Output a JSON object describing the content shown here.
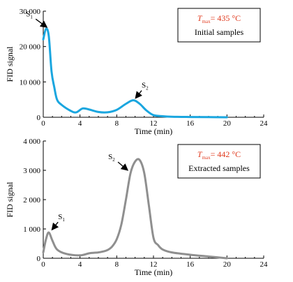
{
  "chart_data": [
    {
      "type": "line",
      "color": "#1aa6df",
      "xlabel": "Time (min)",
      "ylabel": "FID signal",
      "xlim": [
        0,
        24
      ],
      "ylim": [
        0,
        30000
      ],
      "xticks": [
        "0",
        "4",
        "8",
        "12",
        "16",
        "20",
        "24"
      ],
      "yticks": [
        "0",
        "10 000",
        "20 000",
        "30 000"
      ],
      "tmax_symbol": "T",
      "tmax_sub": "max",
      "tmax_value": "= 435 °C",
      "sample_label": "Initial samples",
      "peaks": [
        {
          "symbol": "S",
          "sub": "1",
          "x": 0.7,
          "y": 25000
        },
        {
          "symbol": "S",
          "sub": "2",
          "x": 9.8,
          "y": 4800
        }
      ],
      "series": [
        {
          "x": [
            0,
            0.3,
            0.6,
            0.9,
            1.2,
            1.5,
            2,
            3,
            3.6,
            4.3,
            5,
            6,
            7,
            8,
            9,
            9.8,
            10.5,
            11.2,
            12,
            13,
            14,
            16,
            18,
            20
          ],
          "y": [
            22000,
            25000,
            23000,
            13000,
            8500,
            5000,
            3500,
            1800,
            1400,
            2500,
            2200,
            1500,
            1400,
            2100,
            3800,
            4800,
            3800,
            2000,
            600,
            300,
            150,
            80,
            40,
            0
          ]
        }
      ]
    },
    {
      "type": "line",
      "color": "#8f8f8f",
      "xlabel": "Time (min)",
      "ylabel": "FID signal",
      "xlim": [
        0,
        24
      ],
      "ylim": [
        0,
        4000
      ],
      "xticks": [
        "0",
        "4",
        "8",
        "12",
        "16",
        "20",
        "24"
      ],
      "yticks": [
        "0",
        "1 000",
        "2 000",
        "3 000",
        "4 000"
      ],
      "tmax_symbol": "T",
      "tmax_sub": "max",
      "tmax_value": "= 442 °C",
      "sample_label": "Extracted samples",
      "peaks": [
        {
          "symbol": "S",
          "sub": "1",
          "x": 0.7,
          "y": 900
        },
        {
          "symbol": "S",
          "sub": "2",
          "x": 9.5,
          "y": 2950
        }
      ],
      "series": [
        {
          "x": [
            0,
            0.3,
            0.6,
            1,
            1.5,
            2.5,
            4,
            5,
            6,
            6.5,
            7,
            7.5,
            8,
            8.5,
            9,
            9.5,
            10,
            10.5,
            11,
            11.5,
            12,
            12.5,
            13,
            14,
            16,
            18,
            20
          ],
          "y": [
            200,
            650,
            880,
            600,
            300,
            150,
            100,
            170,
            200,
            230,
            280,
            400,
            650,
            1150,
            2000,
            2900,
            3300,
            3350,
            2900,
            1800,
            700,
            450,
            300,
            200,
            120,
            60,
            0
          ]
        }
      ]
    }
  ]
}
